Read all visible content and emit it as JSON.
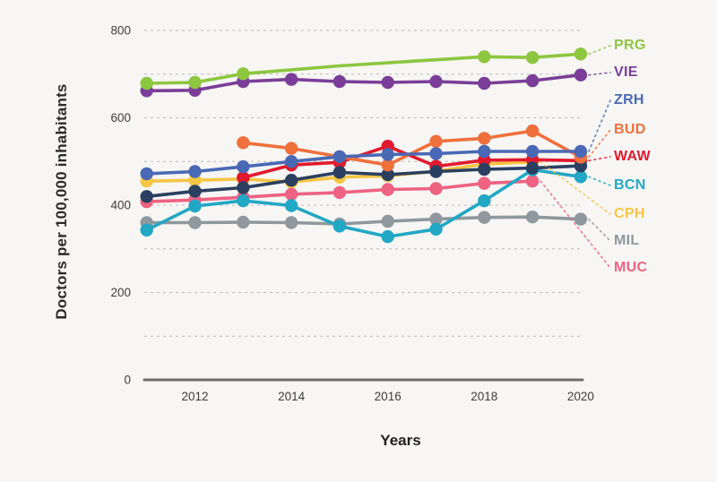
{
  "chart_data": {
    "type": "line",
    "title": "",
    "xlabel": "Years",
    "ylabel": "Doctors per 100,000 inhabitants",
    "x": [
      2011,
      2012,
      2013,
      2014,
      2015,
      2016,
      2017,
      2018,
      2019,
      2020
    ],
    "x_tick_labels": [
      "2012",
      "2014",
      "2016",
      "2018",
      "2020"
    ],
    "y_ticks": [
      0,
      200,
      400,
      600,
      800
    ],
    "gridline_values": [
      100,
      200,
      300,
      400,
      500,
      600,
      700,
      800
    ],
    "ylim": [
      0,
      800
    ],
    "grid": "horizontal dashed lines every 100, no vertical grid",
    "legend_position": "right, colored labels with dotted leader lines to line endpoints",
    "series": [
      {
        "name": "CPH",
        "color": "#f6c544",
        "label_y": 239,
        "values": [
          455,
          457,
          460,
          453,
          464,
          467,
          478,
          494,
          499,
          null
        ]
      },
      {
        "name": "MUC",
        "color": "#ee6282",
        "label_y": 299,
        "values": [
          408,
          412,
          418,
          425,
          429,
          436,
          438,
          450,
          455,
          null
        ]
      },
      {
        "name": "MIL",
        "color": "#8e989e",
        "label_y": 269,
        "values": [
          360,
          360,
          361,
          360,
          357,
          363,
          368,
          372,
          373,
          368
        ]
      },
      {
        "name": "BCN",
        "color": "#22a7c5",
        "label_y": 207,
        "values": [
          343,
          398,
          410,
          399,
          352,
          328,
          345,
          410,
          481,
          465
        ]
      },
      {
        "name": "WAW",
        "color": "#e2192d",
        "label_y": 175,
        "values": [
          null,
          null,
          463,
          492,
          498,
          535,
          489,
          503,
          504,
          502
        ]
      },
      {
        "name": "",
        "color": "#2b4060",
        "label_y": null,
        "values": [
          420,
          432,
          440,
          457,
          475,
          470,
          477,
          482,
          485,
          490
        ]
      },
      {
        "name": "BUD",
        "color": "#f0703c",
        "label_y": 145,
        "values": [
          null,
          null,
          543,
          530,
          511,
          492,
          546,
          553,
          570,
          510
        ]
      },
      {
        "name": "ZRH",
        "color": "#4a69b5",
        "label_y": 112,
        "values": [
          472,
          477,
          488,
          500,
          511,
          516,
          518,
          523,
          523,
          523
        ]
      },
      {
        "name": "VIE",
        "color": "#7b3e98",
        "label_y": 81,
        "values": [
          662,
          663,
          683,
          688,
          683,
          681,
          683,
          679,
          685,
          698
        ]
      },
      {
        "name": "PRG",
        "color": "#8dc63f",
        "label_y": 51,
        "values": [
          679,
          681,
          701,
          710,
          719,
          726,
          733,
          740,
          738,
          746
        ],
        "marker_skip_years": [
          2014,
          2015,
          2016,
          2017
        ]
      }
    ]
  },
  "style": {
    "background": "#f7f6f4",
    "gridline_color": "#b9b9b9",
    "axis_line_color": "#6e6e6e",
    "tick_label_color": "#3d3d3d"
  }
}
